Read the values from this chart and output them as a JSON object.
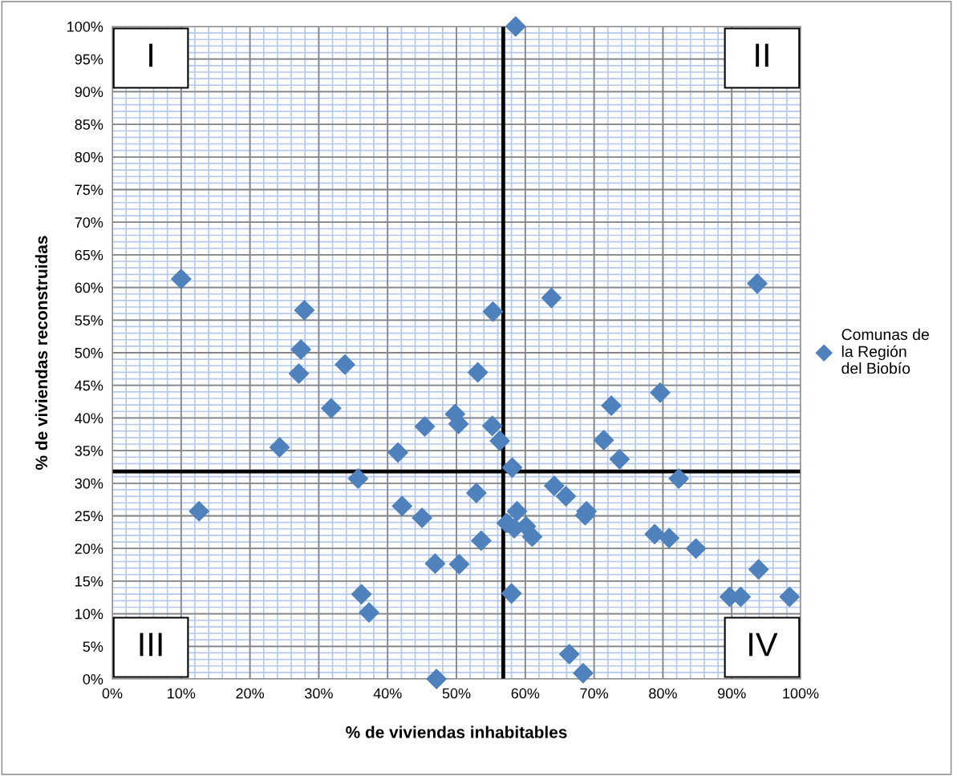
{
  "chart_data": {
    "type": "scatter",
    "xlabel": "% de viviendas inhabitables",
    "ylabel": "% de viviendas reconstruidas",
    "xlim": [
      0,
      100
    ],
    "ylim": [
      0,
      100
    ],
    "xticks": [
      {
        "value": 0,
        "label": "0%"
      },
      {
        "value": 10,
        "label": "10%"
      },
      {
        "value": 20,
        "label": "20%"
      },
      {
        "value": 30,
        "label": "30%"
      },
      {
        "value": 40,
        "label": "40%"
      },
      {
        "value": 50,
        "label": "50%"
      },
      {
        "value": 60,
        "label": "60%"
      },
      {
        "value": 70,
        "label": "70%"
      },
      {
        "value": 80,
        "label": "80%"
      },
      {
        "value": 90,
        "label": "90%"
      },
      {
        "value": 100,
        "label": "100%"
      }
    ],
    "yticks": [
      {
        "value": 0,
        "label": "0%"
      },
      {
        "value": 5,
        "label": "5%"
      },
      {
        "value": 10,
        "label": "10%"
      },
      {
        "value": 15,
        "label": "15%"
      },
      {
        "value": 20,
        "label": "20%"
      },
      {
        "value": 25,
        "label": "25%"
      },
      {
        "value": 30,
        "label": "30%"
      },
      {
        "value": 35,
        "label": "35%"
      },
      {
        "value": 40,
        "label": "40%"
      },
      {
        "value": 45,
        "label": "45%"
      },
      {
        "value": 50,
        "label": "50%"
      },
      {
        "value": 55,
        "label": "55%"
      },
      {
        "value": 60,
        "label": "60%"
      },
      {
        "value": 65,
        "label": "65%"
      },
      {
        "value": 70,
        "label": "70%"
      },
      {
        "value": 75,
        "label": "75%"
      },
      {
        "value": 80,
        "label": "80%"
      },
      {
        "value": 85,
        "label": "85%"
      },
      {
        "value": 90,
        "label": "90%"
      },
      {
        "value": 95,
        "label": "95%"
      },
      {
        "value": 100,
        "label": "100%"
      }
    ],
    "grid": true,
    "legend": "right",
    "marker": "diamond",
    "series": [
      {
        "name": "Comunas de la Región del Biobío",
        "color": "#4f81bd",
        "x": [
          58.6,
          10.0,
          27.9,
          27.4,
          27.1,
          33.8,
          31.8,
          49.8,
          50.3,
          45.4,
          24.3,
          41.5,
          35.7,
          93.7,
          63.8,
          55.3,
          53.1,
          79.6,
          72.5,
          71.4,
          73.7,
          55.2,
          56.3,
          58.1,
          82.3,
          12.6,
          42.1,
          45.0,
          46.9,
          50.4,
          36.2,
          37.3,
          47.1,
          52.9,
          64.2,
          65.9,
          58.8,
          57.3,
          58.4,
          60.1,
          61.0,
          53.6,
          68.9,
          68.7,
          78.8,
          80.9,
          84.8,
          93.9,
          89.7,
          91.3,
          98.4,
          58.0,
          66.4,
          68.4
        ],
        "values": [
          100,
          61.3,
          56.5,
          50.5,
          46.8,
          48.2,
          41.5,
          40.6,
          39.1,
          38.7,
          35.5,
          34.7,
          30.7,
          60.6,
          58.4,
          56.3,
          47.0,
          43.9,
          41.9,
          36.6,
          33.7,
          38.8,
          36.5,
          32.4,
          30.7,
          25.7,
          26.5,
          24.7,
          17.7,
          17.6,
          13.0,
          10.2,
          0.0,
          28.5,
          29.6,
          28.0,
          25.7,
          23.9,
          23.1,
          23.4,
          21.8,
          21.2,
          25.7,
          25.1,
          22.2,
          21.6,
          20.0,
          16.8,
          12.6,
          12.6,
          12.6,
          13.1,
          3.8,
          0.9
        ]
      }
    ],
    "ref_lines": [
      {
        "axis": "x",
        "value": 56.8,
        "color": "#000000",
        "line_style": "solid"
      },
      {
        "axis": "y",
        "value": 31.8,
        "color": "#000000",
        "line_style": "solid"
      }
    ],
    "annotations": [
      "I",
      "II",
      "III",
      "IV"
    ]
  }
}
